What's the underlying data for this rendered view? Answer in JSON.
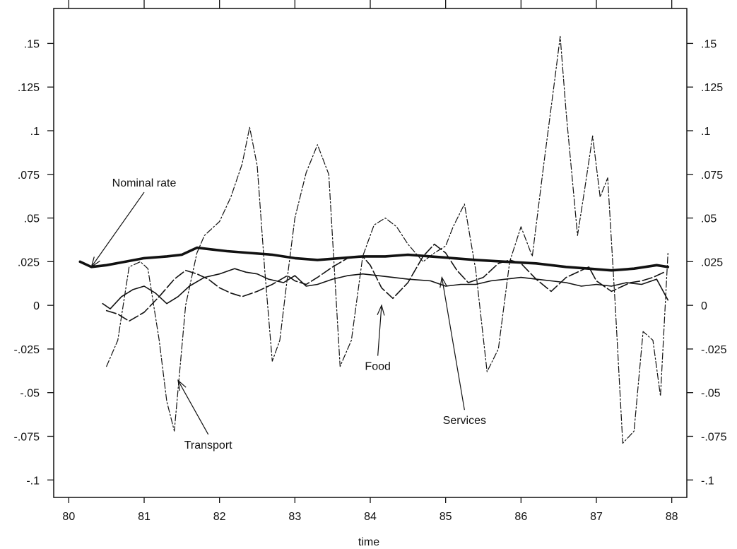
{
  "chart_data": {
    "type": "line",
    "xlabel": "time",
    "ylabel": "",
    "xlim": [
      79.8,
      88.2
    ],
    "ylim": [
      -0.11,
      0.17
    ],
    "x_ticks": [
      80,
      81,
      82,
      83,
      84,
      85,
      86,
      87,
      88
    ],
    "x_tick_labels": [
      "80",
      "81",
      "82",
      "83",
      "84",
      "85",
      "86",
      "87",
      "88"
    ],
    "y_ticks": [
      0.15,
      0.125,
      0.1,
      0.075,
      0.05,
      0.025,
      0,
      -0.025,
      -0.05,
      -0.075,
      -0.1
    ],
    "y_tick_labels": [
      ".15",
      ".125",
      ".1",
      ".075",
      ".05",
      ".025",
      "0",
      "-.025",
      "-.05",
      "-.075",
      "-.1"
    ],
    "grid": false,
    "series": [
      {
        "name": "Nominal rate",
        "style": "thick-solid",
        "color": "#111111",
        "points": [
          [
            80.15,
            0.025
          ],
          [
            80.3,
            0.022
          ],
          [
            80.5,
            0.023
          ],
          [
            80.75,
            0.025
          ],
          [
            81.0,
            0.027
          ],
          [
            81.3,
            0.028
          ],
          [
            81.5,
            0.029
          ],
          [
            81.7,
            0.033
          ],
          [
            81.9,
            0.032
          ],
          [
            82.1,
            0.031
          ],
          [
            82.4,
            0.03
          ],
          [
            82.7,
            0.029
          ],
          [
            83.0,
            0.027
          ],
          [
            83.3,
            0.026
          ],
          [
            83.6,
            0.027
          ],
          [
            83.9,
            0.028
          ],
          [
            84.2,
            0.028
          ],
          [
            84.5,
            0.029
          ],
          [
            84.8,
            0.028
          ],
          [
            85.1,
            0.027
          ],
          [
            85.4,
            0.026
          ],
          [
            85.8,
            0.025
          ],
          [
            86.2,
            0.024
          ],
          [
            86.6,
            0.022
          ],
          [
            86.9,
            0.021
          ],
          [
            87.2,
            0.02
          ],
          [
            87.5,
            0.021
          ],
          [
            87.8,
            0.023
          ],
          [
            87.95,
            0.022
          ]
        ]
      },
      {
        "name": "Services",
        "style": "thin-solid",
        "color": "#111111",
        "points": [
          [
            80.45,
            0.001
          ],
          [
            80.55,
            -0.002
          ],
          [
            80.7,
            0.005
          ],
          [
            80.85,
            0.009
          ],
          [
            81.0,
            0.011
          ],
          [
            81.15,
            0.007
          ],
          [
            81.3,
            0.001
          ],
          [
            81.45,
            0.005
          ],
          [
            81.6,
            0.011
          ],
          [
            81.8,
            0.016
          ],
          [
            82.0,
            0.018
          ],
          [
            82.2,
            0.021
          ],
          [
            82.35,
            0.019
          ],
          [
            82.5,
            0.018
          ],
          [
            82.65,
            0.015
          ],
          [
            82.85,
            0.013
          ],
          [
            83.0,
            0.017
          ],
          [
            83.15,
            0.011
          ],
          [
            83.3,
            0.012
          ],
          [
            83.5,
            0.015
          ],
          [
            83.7,
            0.017
          ],
          [
            83.9,
            0.018
          ],
          [
            84.1,
            0.017
          ],
          [
            84.3,
            0.016
          ],
          [
            84.5,
            0.015
          ],
          [
            84.8,
            0.014
          ],
          [
            85.0,
            0.011
          ],
          [
            85.2,
            0.012
          ],
          [
            85.4,
            0.012
          ],
          [
            85.6,
            0.014
          ],
          [
            85.8,
            0.015
          ],
          [
            86.0,
            0.016
          ],
          [
            86.2,
            0.015
          ],
          [
            86.4,
            0.014
          ],
          [
            86.6,
            0.013
          ],
          [
            86.8,
            0.011
          ],
          [
            87.0,
            0.012
          ],
          [
            87.2,
            0.011
          ],
          [
            87.4,
            0.013
          ],
          [
            87.6,
            0.012
          ],
          [
            87.8,
            0.015
          ],
          [
            87.95,
            0.003
          ]
        ]
      },
      {
        "name": "Food",
        "style": "long-dash",
        "color": "#111111",
        "points": [
          [
            80.5,
            -0.003
          ],
          [
            80.65,
            -0.005
          ],
          [
            80.8,
            -0.009
          ],
          [
            81.0,
            -0.004
          ],
          [
            81.2,
            0.005
          ],
          [
            81.4,
            0.015
          ],
          [
            81.55,
            0.02
          ],
          [
            81.7,
            0.018
          ],
          [
            81.85,
            0.015
          ],
          [
            82.0,
            0.01
          ],
          [
            82.15,
            0.007
          ],
          [
            82.3,
            0.005
          ],
          [
            82.5,
            0.008
          ],
          [
            82.7,
            0.012
          ],
          [
            82.9,
            0.017
          ],
          [
            83.0,
            0.014
          ],
          [
            83.15,
            0.012
          ],
          [
            83.3,
            0.016
          ],
          [
            83.5,
            0.022
          ],
          [
            83.7,
            0.027
          ],
          [
            83.9,
            0.028
          ],
          [
            84.0,
            0.023
          ],
          [
            84.15,
            0.01
          ],
          [
            84.3,
            0.004
          ],
          [
            84.5,
            0.013
          ],
          [
            84.7,
            0.028
          ],
          [
            84.85,
            0.035
          ],
          [
            85.0,
            0.03
          ],
          [
            85.15,
            0.02
          ],
          [
            85.3,
            0.013
          ],
          [
            85.5,
            0.016
          ],
          [
            85.7,
            0.024
          ],
          [
            85.85,
            0.026
          ],
          [
            86.0,
            0.024
          ],
          [
            86.2,
            0.015
          ],
          [
            86.4,
            0.008
          ],
          [
            86.6,
            0.016
          ],
          [
            86.8,
            0.02
          ],
          [
            86.9,
            0.022
          ],
          [
            87.0,
            0.014
          ],
          [
            87.2,
            0.008
          ],
          [
            87.45,
            0.013
          ],
          [
            87.6,
            0.014
          ],
          [
            87.75,
            0.016
          ],
          [
            87.9,
            0.019
          ]
        ]
      },
      {
        "name": "Transport",
        "style": "dash-dot",
        "color": "#111111",
        "points": [
          [
            80.5,
            -0.035
          ],
          [
            80.65,
            -0.02
          ],
          [
            80.8,
            0.022
          ],
          [
            80.95,
            0.025
          ],
          [
            81.05,
            0.021
          ],
          [
            81.2,
            -0.02
          ],
          [
            81.3,
            -0.055
          ],
          [
            81.4,
            -0.072
          ],
          [
            81.55,
            0.0
          ],
          [
            81.7,
            0.03
          ],
          [
            81.8,
            0.04
          ],
          [
            82.0,
            0.048
          ],
          [
            82.15,
            0.062
          ],
          [
            82.3,
            0.081
          ],
          [
            82.4,
            0.102
          ],
          [
            82.5,
            0.08
          ],
          [
            82.6,
            0.02
          ],
          [
            82.7,
            -0.032
          ],
          [
            82.8,
            -0.02
          ],
          [
            82.9,
            0.016
          ],
          [
            83.0,
            0.05
          ],
          [
            83.15,
            0.076
          ],
          [
            83.3,
            0.092
          ],
          [
            83.45,
            0.075
          ],
          [
            83.6,
            -0.035
          ],
          [
            83.75,
            -0.02
          ],
          [
            83.9,
            0.028
          ],
          [
            84.05,
            0.046
          ],
          [
            84.2,
            0.05
          ],
          [
            84.35,
            0.045
          ],
          [
            84.5,
            0.035
          ],
          [
            84.7,
            0.025
          ],
          [
            84.85,
            0.03
          ],
          [
            85.0,
            0.034
          ],
          [
            85.1,
            0.045
          ],
          [
            85.25,
            0.058
          ],
          [
            85.4,
            0.02
          ],
          [
            85.55,
            -0.038
          ],
          [
            85.7,
            -0.025
          ],
          [
            85.85,
            0.025
          ],
          [
            86.0,
            0.045
          ],
          [
            86.15,
            0.028
          ],
          [
            86.3,
            0.08
          ],
          [
            86.45,
            0.13
          ],
          [
            86.52,
            0.154
          ],
          [
            86.6,
            0.11
          ],
          [
            86.75,
            0.04
          ],
          [
            86.85,
            0.068
          ],
          [
            86.95,
            0.097
          ],
          [
            87.05,
            0.062
          ],
          [
            87.15,
            0.073
          ],
          [
            87.25,
            0.0
          ],
          [
            87.35,
            -0.079
          ],
          [
            87.5,
            -0.072
          ],
          [
            87.62,
            -0.015
          ],
          [
            87.75,
            -0.02
          ],
          [
            87.85,
            -0.052
          ],
          [
            87.95,
            0.03
          ]
        ]
      }
    ],
    "annotations": [
      {
        "text": "Nominal rate",
        "x": 81.0,
        "y": 0.068,
        "arrow_to": [
          80.3,
          0.022
        ]
      },
      {
        "text": "Transport",
        "x": 81.85,
        "y": -0.082,
        "arrow_to": [
          81.45,
          -0.043
        ]
      },
      {
        "text": "Food",
        "x": 84.1,
        "y": -0.037,
        "arrow_to": [
          84.15,
          0.0
        ]
      },
      {
        "text": "Services",
        "x": 85.25,
        "y": -0.068,
        "arrow_to": [
          84.95,
          0.016
        ]
      }
    ]
  }
}
